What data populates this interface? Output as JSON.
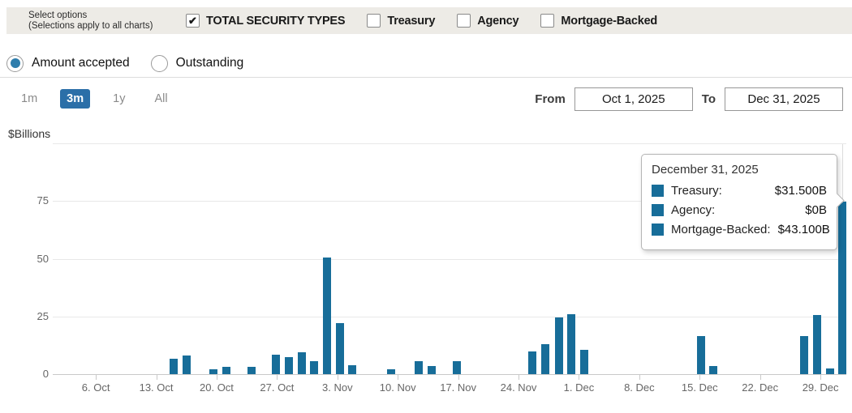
{
  "header": {
    "select_options_line1": "Select options",
    "select_options_line2": "(Selections apply to all charts)",
    "checkboxes": [
      {
        "label": "TOTAL SECURITY TYPES",
        "checked": true
      },
      {
        "label": "Treasury",
        "checked": false
      },
      {
        "label": "Agency",
        "checked": false
      },
      {
        "label": "Mortgage-Backed",
        "checked": false
      }
    ]
  },
  "view_toggle": {
    "options": [
      {
        "label": "Amount accepted",
        "selected": true
      },
      {
        "label": "Outstanding",
        "selected": false
      }
    ]
  },
  "range_controls": {
    "buttons": [
      {
        "label": "1m",
        "selected": false
      },
      {
        "label": "3m",
        "selected": true
      },
      {
        "label": "1y",
        "selected": false
      },
      {
        "label": "All",
        "selected": false
      }
    ],
    "from_label": "From",
    "from_value": "Oct 1, 2025",
    "to_label": "To",
    "to_value": "Dec 31, 2025"
  },
  "tooltip": {
    "title": "December 31, 2025",
    "rows": [
      {
        "label": "Treasury:",
        "value": "$31.500B"
      },
      {
        "label": "Agency:",
        "value": "$0B"
      },
      {
        "label": "Mortgage-Backed:",
        "value": "$43.100B"
      }
    ]
  },
  "chart_data": {
    "type": "bar",
    "title": "",
    "ylabel": "$Billions",
    "ylim": [
      0,
      100
    ],
    "yticks_labeled": [
      0,
      25,
      50,
      75
    ],
    "gridlines": [
      25,
      50,
      75,
      100
    ],
    "grid": true,
    "x_domain_days": [
      0,
      92
    ],
    "x_ticks": [
      {
        "day": 5,
        "label": "6. Oct"
      },
      {
        "day": 12,
        "label": "13. Oct"
      },
      {
        "day": 19,
        "label": "20. Oct"
      },
      {
        "day": 26,
        "label": "27. Oct"
      },
      {
        "day": 33,
        "label": "3. Nov"
      },
      {
        "day": 40,
        "label": "10. Nov"
      },
      {
        "day": 47,
        "label": "17. Nov"
      },
      {
        "day": 54,
        "label": "24. Nov"
      },
      {
        "day": 61,
        "label": "1. Dec"
      },
      {
        "day": 68,
        "label": "8. Dec"
      },
      {
        "day": 75,
        "label": "15. Dec"
      },
      {
        "day": 82,
        "label": "22. Dec"
      },
      {
        "day": 89,
        "label": "29. Dec"
      }
    ],
    "bars": [
      {
        "date": "Oct 15",
        "day": 14.0,
        "value": 6.5
      },
      {
        "date": "Oct 16",
        "day": 15.5,
        "value": 8
      },
      {
        "date": "Oct 20",
        "day": 18.6,
        "value": 2
      },
      {
        "date": "Oct 21",
        "day": 20.1,
        "value": 3
      },
      {
        "date": "Oct 24",
        "day": 23.0,
        "value": 3
      },
      {
        "date": "Oct 27",
        "day": 25.9,
        "value": 8.5
      },
      {
        "date": "Oct 28",
        "day": 27.4,
        "value": 7.5
      },
      {
        "date": "Oct 29",
        "day": 28.9,
        "value": 9.5
      },
      {
        "date": "Oct 30",
        "day": 30.3,
        "value": 5.5
      },
      {
        "date": "Oct 31",
        "day": 31.8,
        "value": 50.5
      },
      {
        "date": "Nov 3",
        "day": 33.3,
        "value": 22
      },
      {
        "date": "Nov 4",
        "day": 34.7,
        "value": 4
      },
      {
        "date": "Nov 7",
        "day": 39.2,
        "value": 2
      },
      {
        "date": "Nov 12",
        "day": 42.4,
        "value": 5.5
      },
      {
        "date": "Nov 13",
        "day": 43.9,
        "value": 3.5
      },
      {
        "date": "Nov 17",
        "day": 46.8,
        "value": 5.5
      },
      {
        "date": "Nov 25",
        "day": 55.6,
        "value": 10
      },
      {
        "date": "Nov 26",
        "day": 57.1,
        "value": 13
      },
      {
        "date": "Nov 28",
        "day": 58.7,
        "value": 24.5
      },
      {
        "date": "Dec 1",
        "day": 60.1,
        "value": 26
      },
      {
        "date": "Dec 2",
        "day": 61.6,
        "value": 10.5
      },
      {
        "date": "Dec 16",
        "day": 75.2,
        "value": 16.5
      },
      {
        "date": "Dec 17",
        "day": 76.6,
        "value": 3.5
      },
      {
        "date": "Dec 26",
        "day": 87.1,
        "value": 16.5
      },
      {
        "date": "Dec 29",
        "day": 88.6,
        "value": 25.5
      },
      {
        "date": "Dec 30",
        "day": 90.1,
        "value": 2.5
      },
      {
        "date": "Dec 31",
        "day": 91.5,
        "value": 74.6
      }
    ],
    "hovered_bar_date": "Dec 31",
    "legend_position": "tooltip-only"
  },
  "colors": {
    "bar": "#176d99",
    "accent_button": "#2b6fa8",
    "radio_selected": "#2e7dac",
    "topbar_bg": "#edebe6",
    "gridline": "#e8e8e8",
    "axis": "#c9c9c9"
  }
}
